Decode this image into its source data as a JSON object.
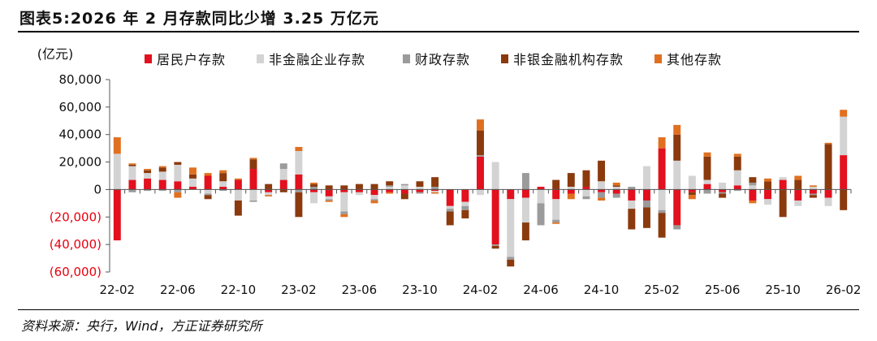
{
  "title": "图表5:2026 年 2 月存款同比少增 3.25 万亿元",
  "source": "资料来源：央行，Wind，方正证券研究所",
  "chart_data": {
    "type": "bar",
    "stacked": true,
    "unit_label": "(亿元)",
    "ylim": [
      -60000,
      80000
    ],
    "yticks": [
      {
        "value": 80000,
        "label": "80,000"
      },
      {
        "value": 60000,
        "label": "60,000"
      },
      {
        "value": 40000,
        "label": "40,000"
      },
      {
        "value": 20000,
        "label": "20,000"
      },
      {
        "value": 0,
        "label": "0"
      },
      {
        "value": -20000,
        "label": "(20,000)"
      },
      {
        "value": -40000,
        "label": "(40,000)"
      },
      {
        "value": -60000,
        "label": "(60,000)"
      }
    ],
    "xtick_labels": [
      {
        "index": 0,
        "label": "22-02"
      },
      {
        "index": 4,
        "label": "22-06"
      },
      {
        "index": 8,
        "label": "22-10"
      },
      {
        "index": 12,
        "label": "23-02"
      },
      {
        "index": 16,
        "label": "23-06"
      },
      {
        "index": 20,
        "label": "23-10"
      },
      {
        "index": 24,
        "label": "24-02"
      },
      {
        "index": 28,
        "label": "24-06"
      },
      {
        "index": 32,
        "label": "24-10"
      },
      {
        "index": 36,
        "label": "25-02"
      },
      {
        "index": 40,
        "label": "25-06"
      },
      {
        "index": 44,
        "label": "25-10"
      },
      {
        "index": 48,
        "label": "26-02"
      }
    ],
    "categories": [
      "22-02",
      "22-03",
      "22-04",
      "22-05",
      "22-06",
      "22-07",
      "22-08",
      "22-09",
      "22-10",
      "22-11",
      "22-12",
      "23-01",
      "23-02",
      "23-03",
      "23-04",
      "23-05",
      "23-06",
      "23-07",
      "23-08",
      "23-09",
      "23-10",
      "23-11",
      "23-12",
      "24-01",
      "24-02",
      "24-03",
      "24-04",
      "24-05",
      "24-06",
      "24-07",
      "24-08",
      "24-09",
      "24-10",
      "24-11",
      "24-12",
      "25-01",
      "25-02",
      "25-03",
      "25-04",
      "25-05",
      "25-06",
      "25-07",
      "25-08",
      "25-09",
      "25-10",
      "25-11",
      "25-12",
      "26-01",
      "26-02"
    ],
    "series": [
      {
        "name": "居民户存款",
        "color": "#e3101e",
        "values": [
          -37000,
          7000,
          8000,
          7000,
          6000,
          2000,
          10000,
          2000,
          7000,
          15000,
          -2000,
          7000,
          11000,
          -2000,
          -5000,
          -2000,
          -2000,
          -4000,
          -2000,
          -3000,
          -2000,
          -1000,
          -12000,
          -9000,
          24000,
          -40000,
          -7000,
          -6000,
          2000,
          -7000,
          -3000,
          2000,
          -2000,
          -3000,
          -8000,
          -8000,
          30000,
          -26000,
          -2000,
          4000,
          -2000,
          3000,
          -8000,
          -7000,
          7000,
          -8000,
          -3000,
          -6000,
          25000
        ]
      },
      {
        "name": "非金融企业存款",
        "color": "#d3d3d3",
        "values": [
          26000,
          10000,
          4000,
          6000,
          12000,
          6000,
          -3000,
          4000,
          -8000,
          -8000,
          -2000,
          8000,
          17000,
          -8000,
          -2000,
          -14000,
          -2000,
          -3000,
          2000,
          3000,
          2000,
          -1000,
          -2000,
          -3000,
          -4000,
          20000,
          -42000,
          -18000,
          -10000,
          -15000,
          2000,
          -5000,
          6000,
          2000,
          -6000,
          17000,
          -15000,
          21000,
          10000,
          3000,
          5000,
          11000,
          3000,
          -4000,
          2000,
          -4000,
          2000,
          -6000,
          28000
        ]
      },
      {
        "name": "财政存款",
        "color": "#9b9b9b",
        "values": [
          0,
          -2000,
          -1000,
          -1000,
          -2000,
          0,
          -1000,
          -1000,
          0,
          -1000,
          0,
          4000,
          -2000,
          2000,
          -1000,
          -2000,
          0,
          -1000,
          1000,
          1000,
          -1000,
          2000,
          -2000,
          -3000,
          1000,
          -1000,
          -2000,
          12000,
          -16000,
          -2000,
          0,
          -2000,
          -4000,
          -3000,
          2000,
          -5000,
          -2000,
          -3000,
          0,
          -3000,
          -1000,
          -1000,
          2000,
          0,
          0,
          0,
          -1000,
          0,
          0
        ]
      },
      {
        "name": "非银金融机构存款",
        "color": "#8b3a0e",
        "values": [
          0,
          1000,
          2000,
          3000,
          2000,
          3000,
          -3000,
          6000,
          -11000,
          7000,
          4000,
          -2000,
          -18000,
          2000,
          3000,
          3000,
          4000,
          4000,
          3000,
          -4000,
          4000,
          7000,
          -10000,
          -6000,
          18000,
          -2000,
          -5000,
          -13000,
          0,
          7000,
          10000,
          12000,
          15000,
          1000,
          -15000,
          -15000,
          -18000,
          19000,
          -2000,
          17000,
          -3000,
          10000,
          4000,
          6000,
          -20000,
          7000,
          -2000,
          33000,
          -15000
        ]
      },
      {
        "name": "其他存款",
        "color": "#e07020",
        "values": [
          12000,
          1000,
          1000,
          1000,
          -4000,
          5000,
          2000,
          2000,
          1000,
          1000,
          -1000,
          0,
          3000,
          1000,
          -1000,
          -2000,
          0,
          -2000,
          -1000,
          0,
          0,
          -1000,
          0,
          0,
          8000,
          0,
          0,
          0,
          0,
          -1000,
          -4000,
          0,
          -2000,
          2000,
          0,
          0,
          8000,
          7000,
          -3000,
          3000,
          0,
          2000,
          -2000,
          2000,
          0,
          3000,
          1000,
          1000,
          5000
        ]
      }
    ],
    "legend_position": "top"
  }
}
